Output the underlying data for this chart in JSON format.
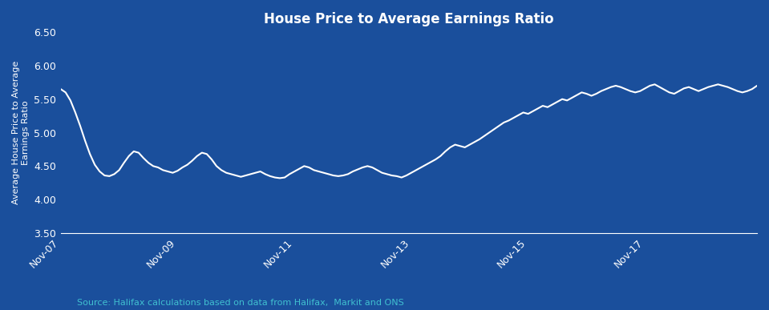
{
  "title": "House Price to Average Earnings Ratio",
  "ylabel": "Average House Price to Average\nEarnings Ratio",
  "source_text": "Source: Halifax calculations based on data from Halifax,  Markit and ONS",
  "background_color": "#1a4f9c",
  "line_color": "#ffffff",
  "text_color": "#ffffff",
  "source_color": "#40c0d0",
  "ylim": [
    3.5,
    6.5
  ],
  "yticks": [
    3.5,
    4.0,
    4.5,
    5.0,
    5.5,
    6.0,
    6.5
  ],
  "xtick_labels": [
    "Nov-07",
    "Nov-09",
    "Nov-11",
    "Nov-13",
    "Nov-15",
    "Nov-17"
  ],
  "data": [
    5.65,
    5.6,
    5.48,
    5.3,
    5.1,
    4.88,
    4.68,
    4.52,
    4.42,
    4.36,
    4.35,
    4.38,
    4.44,
    4.55,
    4.65,
    4.72,
    4.7,
    4.62,
    4.55,
    4.5,
    4.48,
    4.44,
    4.42,
    4.4,
    4.43,
    4.48,
    4.52,
    4.58,
    4.65,
    4.7,
    4.68,
    4.6,
    4.5,
    4.44,
    4.4,
    4.38,
    4.36,
    4.34,
    4.36,
    4.38,
    4.4,
    4.42,
    4.38,
    4.35,
    4.33,
    4.32,
    4.33,
    4.38,
    4.42,
    4.46,
    4.5,
    4.48,
    4.44,
    4.42,
    4.4,
    4.38,
    4.36,
    4.35,
    4.36,
    4.38,
    4.42,
    4.45,
    4.48,
    4.5,
    4.48,
    4.44,
    4.4,
    4.38,
    4.36,
    4.35,
    4.33,
    4.36,
    4.4,
    4.44,
    4.48,
    4.52,
    4.56,
    4.6,
    4.65,
    4.72,
    4.78,
    4.82,
    4.8,
    4.78,
    4.82,
    4.86,
    4.9,
    4.95,
    5.0,
    5.05,
    5.1,
    5.15,
    5.18,
    5.22,
    5.26,
    5.3,
    5.28,
    5.32,
    5.36,
    5.4,
    5.38,
    5.42,
    5.46,
    5.5,
    5.48,
    5.52,
    5.56,
    5.6,
    5.58,
    5.55,
    5.58,
    5.62,
    5.65,
    5.68,
    5.7,
    5.68,
    5.65,
    5.62,
    5.6,
    5.62,
    5.66,
    5.7,
    5.72,
    5.68,
    5.64,
    5.6,
    5.58,
    5.62,
    5.66,
    5.68,
    5.65,
    5.62,
    5.65,
    5.68,
    5.7,
    5.72,
    5.7,
    5.68,
    5.65,
    5.62,
    5.6,
    5.62,
    5.65,
    5.7
  ]
}
